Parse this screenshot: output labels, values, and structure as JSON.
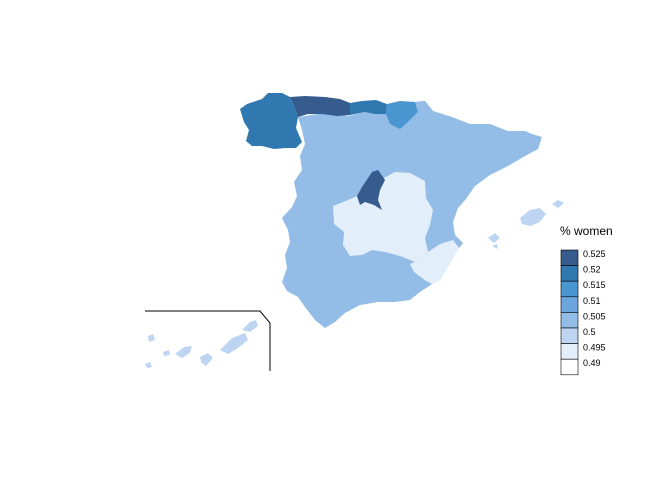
{
  "legend": {
    "title": "% women",
    "entries": [
      {
        "label": "0.525",
        "color": "#355C8D"
      },
      {
        "label": "0.52",
        "color": "#2F78B0"
      },
      {
        "label": "0.515",
        "color": "#4A96D0"
      },
      {
        "label": "0.51",
        "color": "#6DA6DC"
      },
      {
        "label": "0.505",
        "color": "#93BCE6"
      },
      {
        "label": "0.5",
        "color": "#BDD5F3"
      },
      {
        "label": "0.495",
        "color": "#E3EEFB"
      },
      {
        "label": "0.49",
        "color": "#FFFFFF"
      }
    ]
  },
  "regions": [
    {
      "name": "Galicia",
      "color": "#2F78B0"
    },
    {
      "name": "Asturias",
      "color": "#355C8D"
    },
    {
      "name": "Cantabria",
      "color": "#2F78B0"
    },
    {
      "name": "País Vasco",
      "color": "#4A96D0"
    },
    {
      "name": "Castilla y León / Aragón / Cataluña / Valencia / Extremadura / Andalucía",
      "color": "#93BCE6"
    },
    {
      "name": "Madrid",
      "color": "#355C8D"
    },
    {
      "name": "Castilla-La Mancha",
      "color": "#E3EEFB"
    },
    {
      "name": "Murcia",
      "color": "#E3EEFB"
    },
    {
      "name": "Islas Baleares",
      "color": "#BDD5F3"
    },
    {
      "name": "Canarias",
      "color": "#BDD5F3"
    }
  ]
}
